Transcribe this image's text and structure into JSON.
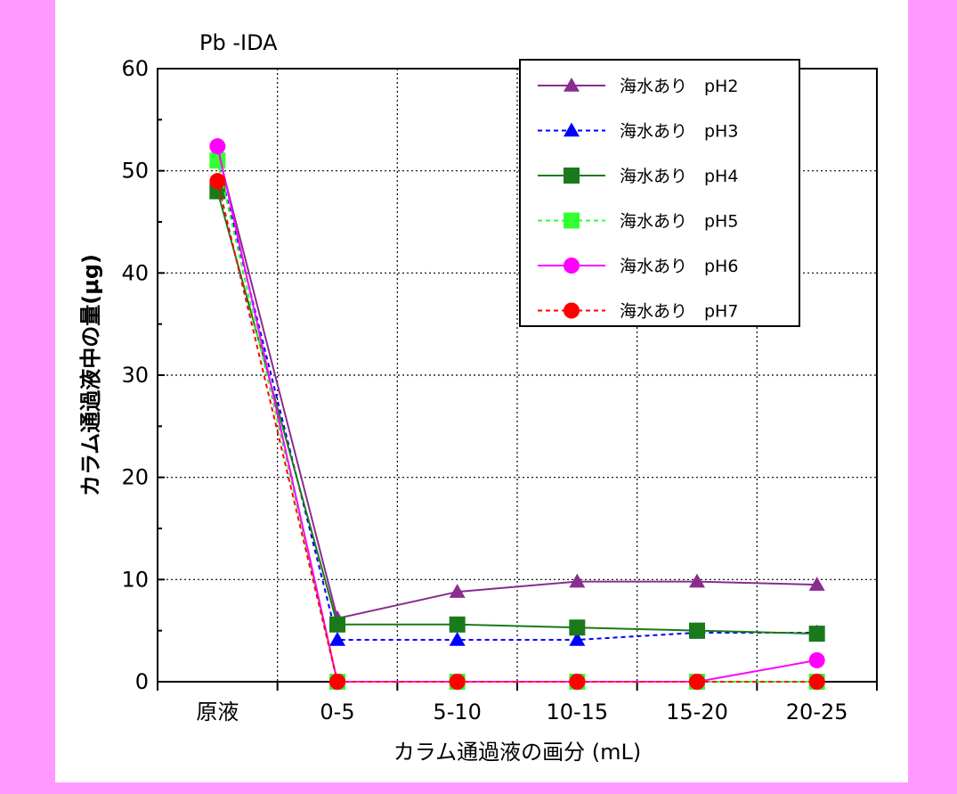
{
  "colors": {
    "page_background": "#ff99ff",
    "panel_background": "#ffffff"
  },
  "chart_data": {
    "type": "line",
    "title": "Pb -IDA",
    "xlabel": "カラム通過液の画分 (mL)",
    "ylabel": "カラム通過液中の量(μg)",
    "categories": [
      "原液",
      "0-5",
      "5-10",
      "10-15",
      "15-20",
      "20-25"
    ],
    "ylim": [
      0,
      60
    ],
    "yticks": [
      0,
      10,
      20,
      30,
      40,
      50,
      60
    ],
    "grid": true,
    "legend_position": "top-right",
    "series": [
      {
        "name": "海水あり　pH2",
        "values": [
          52,
          6.2,
          8.8,
          9.8,
          9.8,
          9.5
        ],
        "color": "#8b2c8f",
        "dash": false,
        "marker": "triangle"
      },
      {
        "name": "海水あり　pH3",
        "values": [
          51,
          4.1,
          4.1,
          4.1,
          4.8,
          4.8
        ],
        "color": "#0000ff",
        "dash": true,
        "marker": "triangle"
      },
      {
        "name": "海水あり　pH4",
        "values": [
          48,
          5.6,
          5.6,
          5.3,
          5.0,
          4.7
        ],
        "color": "#1a7a1a",
        "dash": false,
        "marker": "square"
      },
      {
        "name": "海水あり　pH5",
        "values": [
          51,
          0,
          0,
          0,
          0,
          0
        ],
        "color": "#33ff33",
        "dash": true,
        "marker": "square"
      },
      {
        "name": "海水あり　pH6",
        "values": [
          52.4,
          0,
          0,
          0,
          0,
          2.1
        ],
        "color": "#ff00ff",
        "dash": false,
        "marker": "circle"
      },
      {
        "name": "海水あり　pH7",
        "values": [
          49,
          0,
          0,
          0,
          0,
          0
        ],
        "color": "#ff0000",
        "dash": true,
        "marker": "circle"
      }
    ]
  }
}
